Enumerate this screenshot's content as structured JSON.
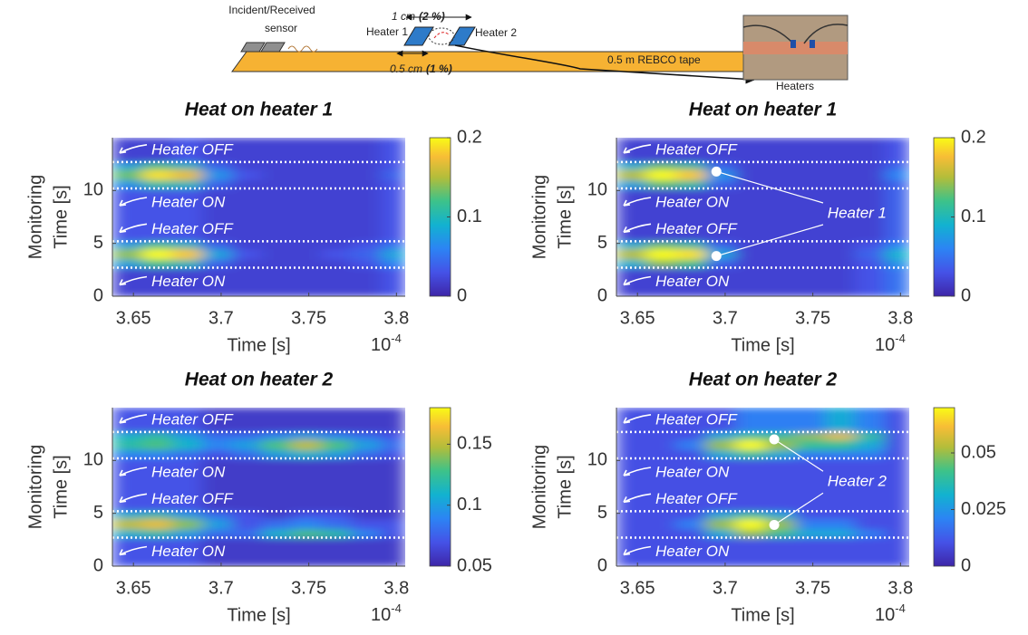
{
  "diagram": {
    "sensor_label": [
      "Incident/Received",
      "sensor"
    ],
    "gap_label": {
      "text": "1 cm",
      "note": "(2 %)"
    },
    "heater1": "Heater 1",
    "heater2": "Heater 2",
    "tape": "0.5 m REBCO tape",
    "offset_label": {
      "text": "0.5 cm",
      "note": "(1 %)"
    },
    "photo_label": "Heaters"
  },
  "chart_data": [
    {
      "type": "heatmap",
      "title": "Heat on heater 1",
      "ylabel": [
        "Monitoring",
        "Time [s]"
      ],
      "xlabel": "Time [s]",
      "x_scale_label": {
        "base": "10",
        "exponent": "-4"
      },
      "xlim": [
        3.638,
        3.805
      ],
      "ylim": [
        0,
        15
      ],
      "xticks": [
        3.65,
        3.7,
        3.75,
        3.8
      ],
      "yticks": [
        0,
        5,
        10
      ],
      "clim": [
        0,
        0.2
      ],
      "cticks": [
        0,
        0.1,
        0.2
      ],
      "xbins": [
        3.638,
        3.655,
        3.672,
        3.689,
        3.706,
        3.723,
        3.74,
        3.757,
        3.774,
        3.791,
        3.805
      ],
      "ybins": [
        0,
        2.7,
        3.5,
        4.5,
        5.2,
        10.2,
        11,
        12,
        12.7,
        15
      ],
      "z": [
        [
          0.02,
          0.02,
          0.02,
          0.02,
          0.02,
          0.02,
          0.02,
          0.02,
          0.02,
          0.03
        ],
        [
          0.08,
          0.12,
          0.1,
          0.04,
          0.02,
          0.02,
          0.02,
          0.02,
          0.03,
          0.06
        ],
        [
          0.14,
          0.2,
          0.18,
          0.08,
          0.03,
          0.02,
          0.02,
          0.03,
          0.04,
          0.08
        ],
        [
          0.08,
          0.12,
          0.1,
          0.04,
          0.02,
          0.02,
          0.02,
          0.02,
          0.03,
          0.05
        ],
        [
          0.03,
          0.03,
          0.03,
          0.02,
          0.02,
          0.02,
          0.02,
          0.02,
          0.02,
          0.03
        ],
        [
          0.07,
          0.11,
          0.1,
          0.04,
          0.02,
          0.02,
          0.02,
          0.02,
          0.02,
          0.03
        ],
        [
          0.13,
          0.19,
          0.17,
          0.07,
          0.03,
          0.02,
          0.02,
          0.02,
          0.02,
          0.04
        ],
        [
          0.08,
          0.12,
          0.1,
          0.04,
          0.02,
          0.02,
          0.02,
          0.02,
          0.02,
          0.03
        ],
        [
          0.02,
          0.02,
          0.03,
          0.02,
          0.02,
          0.02,
          0.02,
          0.02,
          0.02,
          0.03
        ]
      ],
      "hlines": [
        2.7,
        5.2,
        10.2,
        12.7
      ],
      "annotations": [
        "Heater OFF",
        "Heater ON",
        "Heater OFF",
        "Heater ON"
      ]
    },
    {
      "type": "heatmap",
      "title": "Heat on heater 1",
      "ylabel": [
        "Monitoring",
        "Time [s]"
      ],
      "xlabel": "Time [s]",
      "x_scale_label": {
        "base": "10",
        "exponent": "-4"
      },
      "xlim": [
        3.638,
        3.805
      ],
      "ylim": [
        0,
        15
      ],
      "xticks": [
        3.65,
        3.7,
        3.75,
        3.8
      ],
      "yticks": [
        0,
        5,
        10
      ],
      "clim": [
        0,
        0.2
      ],
      "cticks": [
        0,
        0.1,
        0.2
      ],
      "xbins": [
        3.638,
        3.655,
        3.672,
        3.689,
        3.706,
        3.723,
        3.74,
        3.757,
        3.774,
        3.791,
        3.805
      ],
      "ybins": [
        0,
        2.7,
        3.5,
        4.5,
        5.2,
        10.2,
        11,
        12,
        12.7,
        15
      ],
      "z": [
        [
          0.02,
          0.02,
          0.02,
          0.02,
          0.02,
          0.02,
          0.02,
          0.02,
          0.03,
          0.05
        ],
        [
          0.09,
          0.14,
          0.12,
          0.04,
          0.02,
          0.02,
          0.02,
          0.02,
          0.03,
          0.07
        ],
        [
          0.15,
          0.2,
          0.19,
          0.08,
          0.02,
          0.02,
          0.02,
          0.02,
          0.04,
          0.09
        ],
        [
          0.09,
          0.13,
          0.11,
          0.04,
          0.02,
          0.02,
          0.02,
          0.02,
          0.03,
          0.06
        ],
        [
          0.02,
          0.02,
          0.02,
          0.02,
          0.02,
          0.02,
          0.02,
          0.02,
          0.02,
          0.04
        ],
        [
          0.08,
          0.13,
          0.11,
          0.04,
          0.02,
          0.02,
          0.02,
          0.02,
          0.02,
          0.04
        ],
        [
          0.15,
          0.2,
          0.18,
          0.07,
          0.02,
          0.02,
          0.02,
          0.02,
          0.02,
          0.06
        ],
        [
          0.09,
          0.13,
          0.11,
          0.04,
          0.02,
          0.02,
          0.02,
          0.02,
          0.02,
          0.04
        ],
        [
          0.02,
          0.02,
          0.02,
          0.02,
          0.02,
          0.02,
          0.02,
          0.02,
          0.02,
          0.03
        ]
      ],
      "hlines": [
        2.7,
        5.2,
        10.2,
        12.7
      ],
      "annotations": [
        "Heater OFF",
        "Heater ON",
        "Heater OFF",
        "Heater ON"
      ],
      "callout": {
        "label": "Heater 1",
        "points": [
          {
            "x": 3.695,
            "y": 11.8
          },
          {
            "x": 3.695,
            "y": 3.8
          }
        ]
      }
    },
    {
      "type": "heatmap",
      "title": "Heat on heater 2",
      "ylabel": [
        "Monitoring",
        "Time [s]"
      ],
      "xlabel": "Time [s]",
      "x_scale_label": {
        "base": "10",
        "exponent": "-4"
      },
      "xlim": [
        3.638,
        3.805
      ],
      "ylim": [
        0,
        15
      ],
      "xticks": [
        3.65,
        3.7,
        3.75,
        3.8
      ],
      "yticks": [
        0,
        5,
        10
      ],
      "clim": [
        0.05,
        0.18
      ],
      "cticks": [
        0.05,
        0.1,
        0.15
      ],
      "xbins": [
        3.638,
        3.655,
        3.672,
        3.689,
        3.706,
        3.723,
        3.74,
        3.757,
        3.774,
        3.791,
        3.805
      ],
      "ybins": [
        0,
        2.7,
        3.5,
        4.5,
        5.2,
        10.2,
        11,
        12,
        12.7,
        15
      ],
      "z": [
        [
          0.07,
          0.07,
          0.07,
          0.06,
          0.06,
          0.06,
          0.06,
          0.06,
          0.06,
          0.06
        ],
        [
          0.11,
          0.12,
          0.1,
          0.08,
          0.08,
          0.11,
          0.13,
          0.12,
          0.09,
          0.07
        ],
        [
          0.15,
          0.16,
          0.14,
          0.1,
          0.07,
          0.08,
          0.09,
          0.08,
          0.07,
          0.07
        ],
        [
          0.11,
          0.12,
          0.1,
          0.08,
          0.07,
          0.06,
          0.07,
          0.07,
          0.06,
          0.06
        ],
        [
          0.07,
          0.07,
          0.07,
          0.06,
          0.06,
          0.06,
          0.06,
          0.06,
          0.06,
          0.06
        ],
        [
          0.09,
          0.09,
          0.08,
          0.07,
          0.08,
          0.1,
          0.11,
          0.1,
          0.08,
          0.07
        ],
        [
          0.12,
          0.13,
          0.11,
          0.09,
          0.1,
          0.13,
          0.15,
          0.13,
          0.1,
          0.08
        ],
        [
          0.11,
          0.12,
          0.1,
          0.08,
          0.08,
          0.09,
          0.1,
          0.09,
          0.08,
          0.07
        ],
        [
          0.07,
          0.07,
          0.07,
          0.06,
          0.06,
          0.06,
          0.06,
          0.06,
          0.06,
          0.06
        ]
      ],
      "hlines": [
        2.7,
        5.2,
        10.2,
        12.7
      ],
      "annotations": [
        "Heater OFF",
        "Heater ON",
        "Heater OFF",
        "Heater ON"
      ]
    },
    {
      "type": "heatmap",
      "title": "Heat on heater 2",
      "ylabel": [
        "Monitoring",
        "Time [s]"
      ],
      "xlabel": "Time [s]",
      "x_scale_label": {
        "base": "10",
        "exponent": "-4"
      },
      "xlim": [
        3.638,
        3.805
      ],
      "ylim": [
        0,
        15
      ],
      "xticks": [
        3.65,
        3.7,
        3.75,
        3.8
      ],
      "yticks": [
        0,
        5,
        10
      ],
      "clim": [
        0,
        0.07
      ],
      "cticks": [
        0,
        0.025,
        0.05
      ],
      "xbins": [
        3.638,
        3.655,
        3.672,
        3.689,
        3.706,
        3.723,
        3.74,
        3.757,
        3.774,
        3.791,
        3.805
      ],
      "ybins": [
        0,
        2.7,
        3.5,
        4.5,
        5.2,
        10.2,
        11,
        12,
        12.7,
        15
      ],
      "z": [
        [
          0.01,
          0.01,
          0.01,
          0.01,
          0.01,
          0.01,
          0.01,
          0.01,
          0.01,
          0.01
        ],
        [
          0.01,
          0.01,
          0.01,
          0.03,
          0.05,
          0.04,
          0.03,
          0.03,
          0.02,
          0.01
        ],
        [
          0.01,
          0.01,
          0.02,
          0.05,
          0.07,
          0.05,
          0.02,
          0.02,
          0.01,
          0.01
        ],
        [
          0.01,
          0.01,
          0.01,
          0.03,
          0.04,
          0.03,
          0.01,
          0.01,
          0.01,
          0.01
        ],
        [
          0.01,
          0.01,
          0.01,
          0.01,
          0.01,
          0.01,
          0.01,
          0.01,
          0.01,
          0.01
        ],
        [
          0.01,
          0.01,
          0.01,
          0.03,
          0.04,
          0.03,
          0.02,
          0.02,
          0.02,
          0.01
        ],
        [
          0.01,
          0.01,
          0.02,
          0.05,
          0.07,
          0.05,
          0.04,
          0.04,
          0.03,
          0.01
        ],
        [
          0.01,
          0.01,
          0.01,
          0.03,
          0.04,
          0.04,
          0.05,
          0.06,
          0.04,
          0.01
        ],
        [
          0.01,
          0.01,
          0.01,
          0.01,
          0.02,
          0.02,
          0.02,
          0.03,
          0.02,
          0.01
        ]
      ],
      "hlines": [
        2.7,
        5.2,
        10.2,
        12.7
      ],
      "annotations": [
        "Heater OFF",
        "Heater ON",
        "Heater OFF",
        "Heater ON"
      ],
      "callout": {
        "label": "Heater 2",
        "points": [
          {
            "x": 3.728,
            "y": 12
          },
          {
            "x": 3.728,
            "y": 3.9
          }
        ]
      }
    }
  ]
}
